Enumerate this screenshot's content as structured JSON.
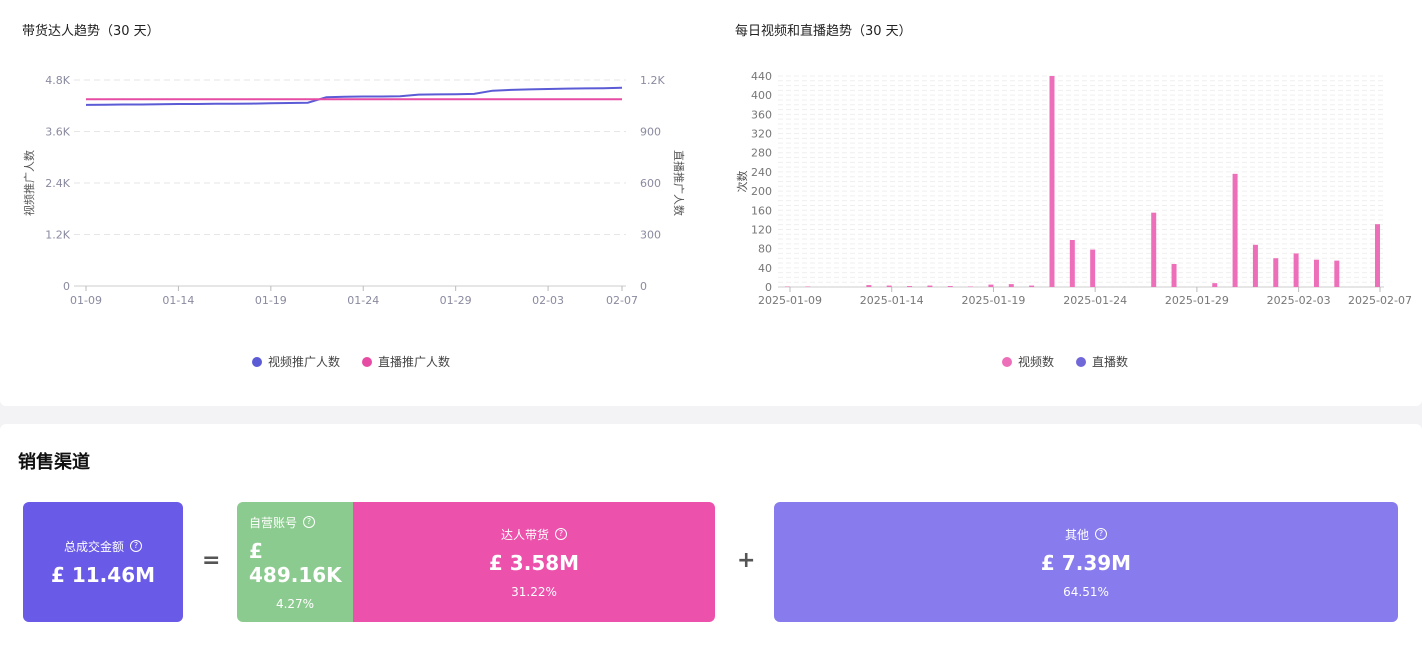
{
  "left_chart": {
    "title": "带货达人趋势（30 天）",
    "legend": [
      {
        "label": "视频推广人数",
        "color": "#5b5bd6"
      },
      {
        "label": "直播推广人数",
        "color": "#e64ca4"
      }
    ]
  },
  "right_chart": {
    "title": "每日视频和直播趋势（30 天）",
    "legend": [
      {
        "label": "视频数",
        "color": "#ee6fb9"
      },
      {
        "label": "直播数",
        "color": "#7068d8"
      }
    ]
  },
  "chart_data": [
    {
      "type": "line",
      "title": "带货达人趋势（30 天）",
      "x": [
        "01-09",
        "01-10",
        "01-11",
        "01-12",
        "01-13",
        "01-14",
        "01-15",
        "01-16",
        "01-17",
        "01-18",
        "01-19",
        "01-20",
        "01-21",
        "01-22",
        "01-23",
        "01-24",
        "01-25",
        "01-26",
        "01-27",
        "01-28",
        "01-29",
        "01-30",
        "01-31",
        "02-01",
        "02-02",
        "02-03",
        "02-04",
        "02-05",
        "02-06",
        "02-07"
      ],
      "x_ticks": [
        "01-09",
        "01-14",
        "01-19",
        "01-24",
        "01-29",
        "02-03",
        "02-07"
      ],
      "ylabel_left": "视频推广人数",
      "ylabel_right": "直播推广人数",
      "ylim_left": [
        0,
        4800
      ],
      "ylim_right": [
        0,
        1200
      ],
      "yticks_left": [
        "0",
        "1.2K",
        "2.4K",
        "3.6K",
        "4.8K"
      ],
      "yticks_right": [
        "0",
        "300",
        "600",
        "900",
        "1.2K"
      ],
      "grid": true,
      "series": [
        {
          "name": "视频推广人数",
          "axis": "left",
          "color": "#5b5bd6",
          "values": [
            4220,
            4225,
            4230,
            4230,
            4235,
            4240,
            4240,
            4245,
            4245,
            4250,
            4260,
            4265,
            4270,
            4400,
            4410,
            4415,
            4415,
            4420,
            4460,
            4465,
            4470,
            4475,
            4550,
            4570,
            4580,
            4590,
            4600,
            4605,
            4610,
            4620
          ]
        },
        {
          "name": "直播推广人数",
          "axis": "right",
          "color": "#e64ca4",
          "values": [
            1088,
            1088,
            1088,
            1088,
            1088,
            1088,
            1088,
            1088,
            1088,
            1088,
            1088,
            1088,
            1088,
            1088,
            1088,
            1088,
            1088,
            1088,
            1088,
            1088,
            1088,
            1088,
            1088,
            1088,
            1088,
            1088,
            1088,
            1088,
            1088,
            1088
          ]
        }
      ]
    },
    {
      "type": "bar",
      "title": "每日视频和直播趋势（30 天）",
      "x": [
        "2025-01-09",
        "2025-01-10",
        "2025-01-11",
        "2025-01-12",
        "2025-01-13",
        "2025-01-14",
        "2025-01-15",
        "2025-01-16",
        "2025-01-17",
        "2025-01-18",
        "2025-01-19",
        "2025-01-20",
        "2025-01-21",
        "2025-01-22",
        "2025-01-23",
        "2025-01-24",
        "2025-01-25",
        "2025-01-26",
        "2025-01-27",
        "2025-01-28",
        "2025-01-29",
        "2025-01-30",
        "2025-01-31",
        "2025-02-01",
        "2025-02-02",
        "2025-02-03",
        "2025-02-04",
        "2025-02-05",
        "2025-02-06",
        "2025-02-07"
      ],
      "x_ticks": [
        "2025-01-09",
        "2025-01-14",
        "2025-01-19",
        "2025-01-24",
        "2025-01-29",
        "2025-02-03",
        "2025-02-07"
      ],
      "ylabel": "次数",
      "ylim": [
        0,
        440
      ],
      "yticks": [
        "0",
        "40",
        "80",
        "120",
        "160",
        "200",
        "240",
        "280",
        "320",
        "360",
        "400",
        "440"
      ],
      "grid": true,
      "series": [
        {
          "name": "视频数",
          "color": "#ee6fb9",
          "values": [
            1,
            1,
            0,
            0,
            4,
            3,
            2,
            3,
            2,
            1,
            5,
            6,
            3,
            440,
            98,
            78,
            0,
            0,
            155,
            48,
            0,
            8,
            236,
            88,
            60,
            70,
            57,
            55,
            0,
            131
          ]
        },
        {
          "name": "直播数",
          "color": "#7068d8",
          "values": [
            0,
            0,
            0,
            0,
            0,
            0,
            0,
            0,
            0,
            0,
            0,
            0,
            0,
            0,
            0,
            0,
            0,
            0,
            0,
            0,
            0,
            0,
            0,
            0,
            0,
            0,
            0,
            0,
            0,
            0
          ]
        }
      ]
    }
  ],
  "sales": {
    "title": "销售渠道",
    "total": {
      "label": "总成交金额",
      "value": "£ 11.46M",
      "color": "#6a5ae8"
    },
    "equals": "=",
    "plus": "+",
    "self_account": {
      "label": "自营账号",
      "value": "£ 489.16K",
      "pct": "4.27%",
      "color": "#8ccb8f"
    },
    "influencer": {
      "label": "达人带货",
      "value": "£ 3.58M",
      "pct": "31.22%",
      "color": "#ec51ab"
    },
    "other": {
      "label": "其他",
      "value": "£ 7.39M",
      "pct": "64.51%",
      "color": "#877bee"
    }
  }
}
